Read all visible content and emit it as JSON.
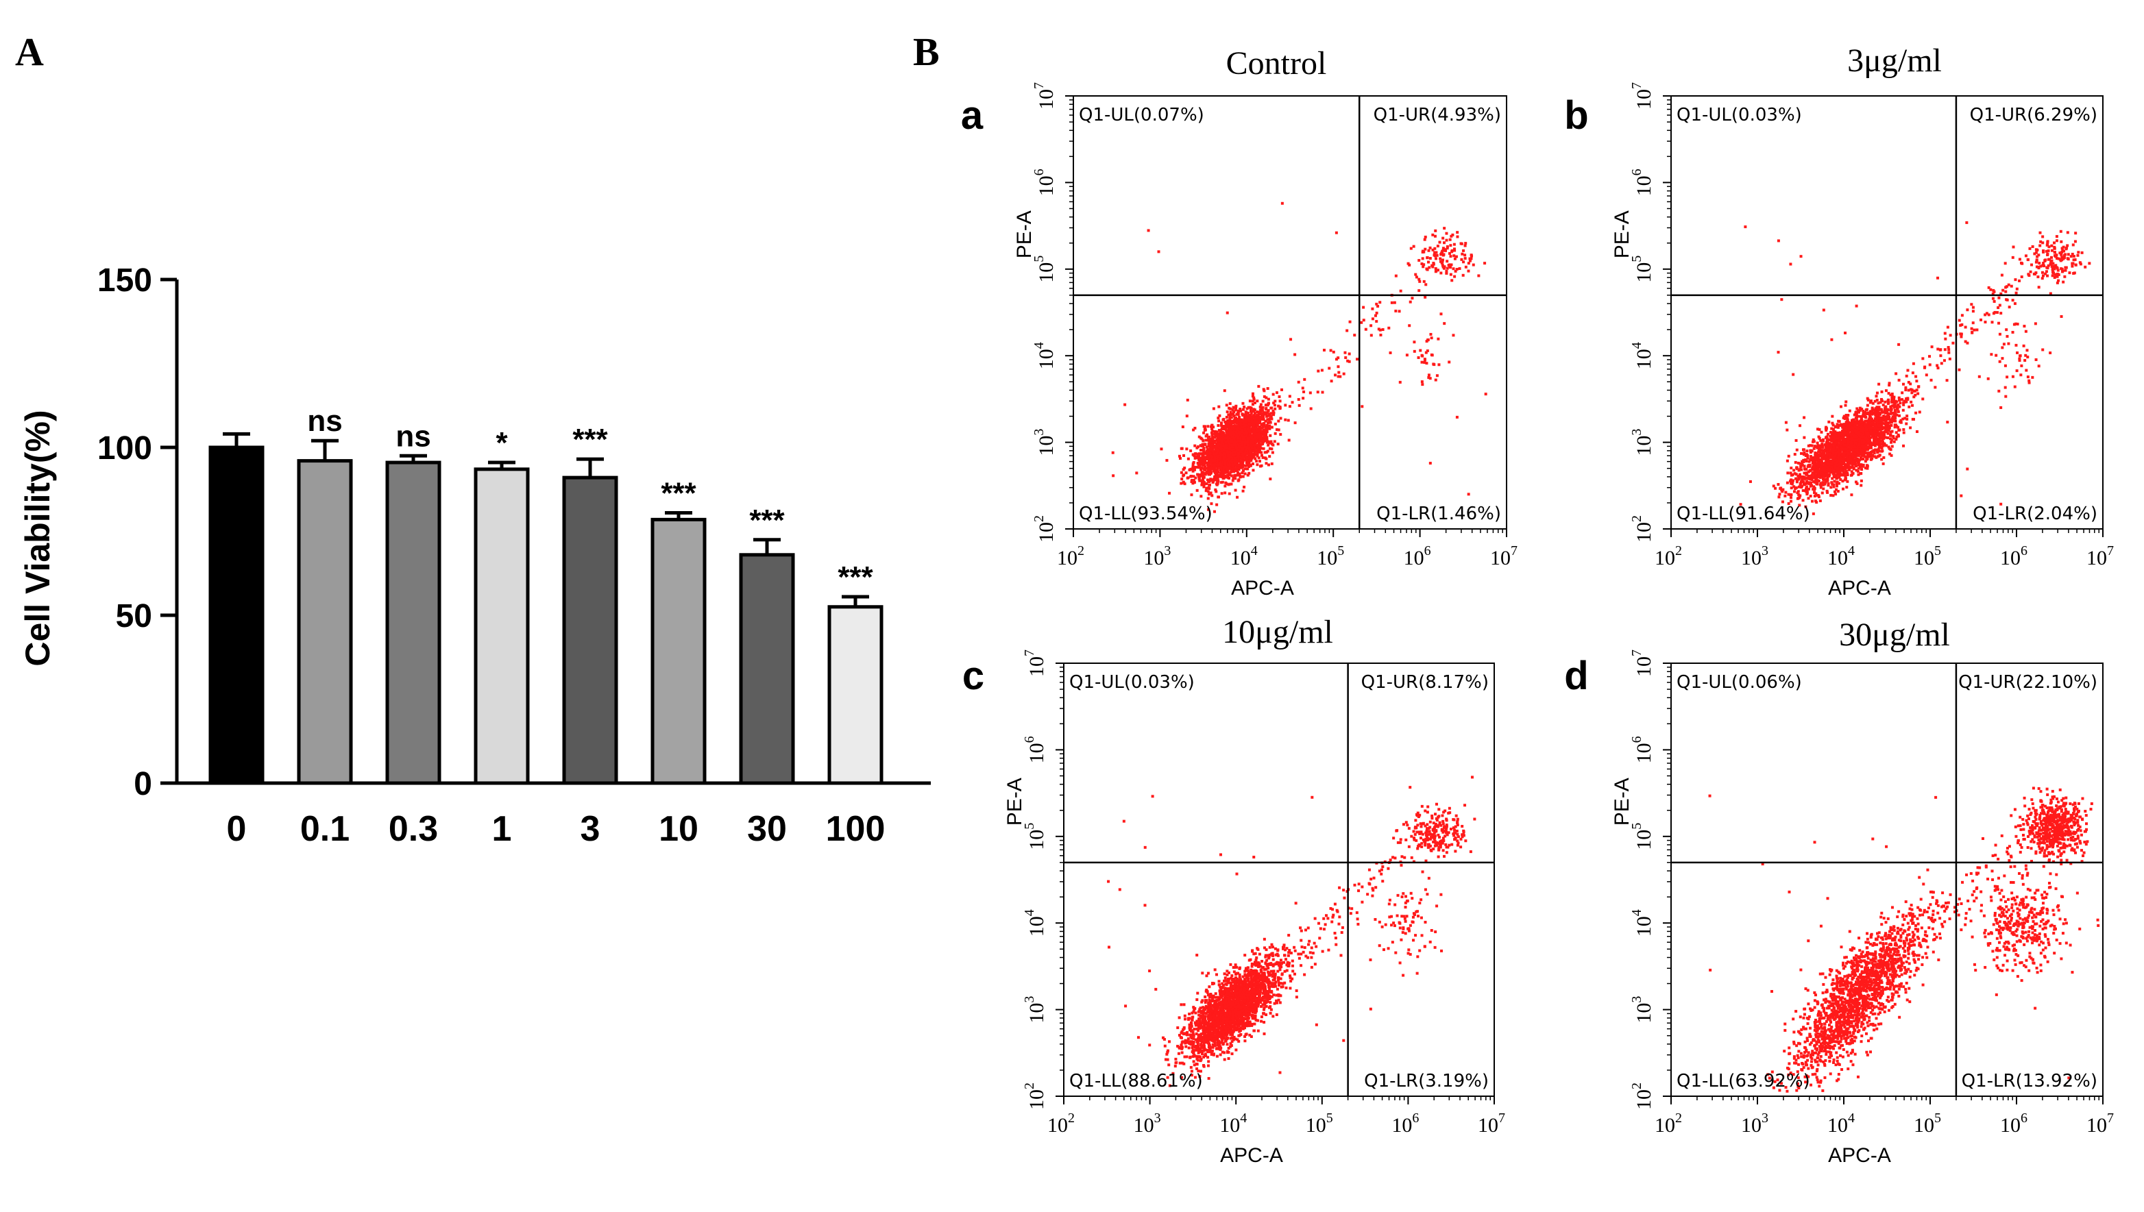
{
  "panels": {
    "A": "A",
    "B": "B"
  },
  "chart_data": [
    {
      "type": "bar",
      "panel": "A",
      "ylabel": "Cell Viability(%)",
      "xlabel": "",
      "ylim": [
        0,
        150
      ],
      "yticks": [
        "0",
        "50",
        "100",
        "150"
      ],
      "categories": [
        "0",
        "0.1",
        "0.3",
        "1",
        "3",
        "10",
        "30",
        "100"
      ],
      "values": [
        100,
        96,
        95.5,
        93.5,
        91,
        78.5,
        68,
        52.5
      ],
      "errors": [
        4,
        6,
        2,
        2,
        5.5,
        2,
        4.5,
        3
      ],
      "significance": [
        "",
        "ns",
        "ns",
        "*",
        "***",
        "***",
        "***",
        "***"
      ],
      "bar_colors": [
        "#000000",
        "#9a9a9a",
        "#7b7b7b",
        "#d9d9d9",
        "#5a5a5a",
        "#a3a3a3",
        "#5e5e5e",
        "#ebebeb"
      ],
      "grid": false
    },
    {
      "type": "scatter",
      "panel": "a",
      "title": "Control",
      "xlabel": "APC-A",
      "ylabel": "PE-A",
      "x_scale": "log",
      "y_scale": "log",
      "xlim": [
        100,
        10000000
      ],
      "ylim": [
        100,
        10000000
      ],
      "gate": {
        "x": 200000,
        "y": 50000
      },
      "quadrants": {
        "UL": "Q1-UL(0.07%)",
        "UR": "Q1-UR(4.93%)",
        "LL": "Q1-LL(93.54%)",
        "LR": "Q1-LR(1.46%)"
      },
      "population_percent": {
        "LL": 93.54,
        "UR": 4.93,
        "LR": 1.46,
        "UL": 0.07
      }
    },
    {
      "type": "scatter",
      "panel": "b",
      "title": "3μg/ml",
      "xlabel": "APC-A",
      "ylabel": "PE-A",
      "x_scale": "log",
      "y_scale": "log",
      "xlim": [
        100,
        10000000
      ],
      "ylim": [
        100,
        10000000
      ],
      "gate": {
        "x": 200000,
        "y": 50000
      },
      "quadrants": {
        "UL": "Q1-UL(0.03%)",
        "UR": "Q1-UR(6.29%)",
        "LL": "Q1-LL(91.64%)",
        "LR": "Q1-LR(2.04%)"
      },
      "population_percent": {
        "LL": 91.64,
        "UR": 6.29,
        "LR": 2.04,
        "UL": 0.03
      }
    },
    {
      "type": "scatter",
      "panel": "c",
      "title": "10μg/ml",
      "xlabel": "APC-A",
      "ylabel": "PE-A",
      "x_scale": "log",
      "y_scale": "log",
      "xlim": [
        100,
        10000000
      ],
      "ylim": [
        100,
        10000000
      ],
      "gate": {
        "x": 200000,
        "y": 50000
      },
      "quadrants": {
        "UL": "Q1-UL(0.03%)",
        "UR": "Q1-UR(8.17%)",
        "LL": "Q1-LL(88.61%)",
        "LR": "Q1-LR(3.19%)"
      },
      "population_percent": {
        "LL": 88.61,
        "UR": 8.17,
        "LR": 3.19,
        "UL": 0.03
      }
    },
    {
      "type": "scatter",
      "panel": "d",
      "title": "30μg/ml",
      "xlabel": "APC-A",
      "ylabel": "PE-A",
      "x_scale": "log",
      "y_scale": "log",
      "xlim": [
        100,
        10000000
      ],
      "ylim": [
        100,
        10000000
      ],
      "gate": {
        "x": 200000,
        "y": 50000
      },
      "quadrants": {
        "UL": "Q1-UL(0.06%)",
        "UR": "Q1-UR(22.10%)",
        "LL": "Q1-LL(63.92%)",
        "LR": "Q1-LR(13.92%)"
      },
      "population_percent": {
        "LL": 63.92,
        "UR": 22.1,
        "LR": 13.92,
        "UL": 0.06
      }
    }
  ],
  "log_tick_exponents": [
    "2",
    "3",
    "4",
    "5",
    "6",
    "7"
  ],
  "log_tick_base": "10",
  "colors": {
    "dots": "#ff1a1a",
    "axis": "#000000"
  }
}
